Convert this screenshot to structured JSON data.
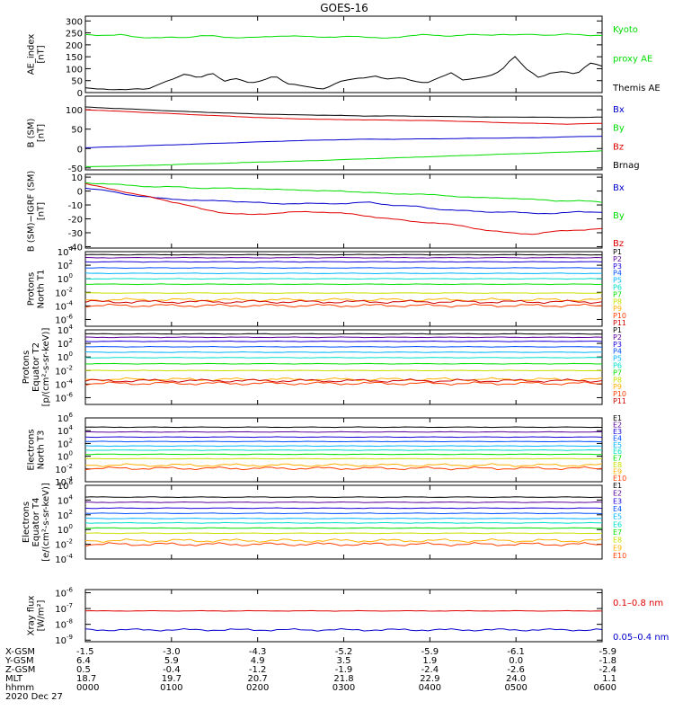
{
  "title": "GOES-16",
  "colors": {
    "black": "#000000",
    "red": "#e00000",
    "green": "#00dd00",
    "blue": "#0000cc",
    "rainbow": [
      "#000000",
      "#5a009c",
      "#1a00d8",
      "#0050ff",
      "#00b4ff",
      "#00e0c8",
      "#00e000",
      "#c8e000",
      "#ffb000",
      "#ff4000",
      "#d00000"
    ]
  },
  "chart_data": [
    {
      "id": "ae",
      "type": "line",
      "ylabel": [
        "AE_index",
        "[nT]"
      ],
      "ylim": [
        0,
        320
      ],
      "yticks": [
        "300",
        "250",
        "200",
        "150",
        "100",
        "50",
        "0"
      ],
      "series": [
        {
          "name": "Kyoto proxy AE",
          "color": "#00dd00",
          "values": [
            243,
            238,
            240,
            245,
            232,
            228,
            230,
            234,
            230,
            236,
            239,
            233,
            230,
            230,
            232,
            236,
            238,
            236,
            233,
            232,
            234,
            236,
            232,
            230,
            230,
            232,
            238,
            244,
            240,
            236,
            240,
            244,
            241,
            244,
            240,
            244,
            243,
            240,
            244,
            243,
            240,
            240
          ]
        },
        {
          "name": "Themis AE",
          "color": "#000000",
          "values": [
            18,
            16,
            14,
            12,
            14,
            15,
            40,
            58,
            78,
            60,
            85,
            48,
            58,
            40,
            50,
            72,
            36,
            30,
            22,
            15,
            42,
            55,
            62,
            70,
            55,
            62,
            50,
            40,
            60,
            82,
            52,
            62,
            68,
            90,
            155,
            100,
            62,
            82,
            88,
            78,
            125,
            110
          ]
        }
      ],
      "legend": [
        {
          "text": "Kyoto",
          "color": "#00dd00"
        },
        {
          "text": "proxy AE",
          "color": "#00dd00"
        },
        {
          "text": "Themis AE",
          "color": "#000000"
        }
      ]
    },
    {
      "id": "bsm",
      "type": "line",
      "ylabel": [
        "B (SM)",
        "[nT]"
      ],
      "ylim": [
        -55,
        135
      ],
      "yticks": [
        "100",
        "50",
        "0",
        "-50"
      ],
      "series": [
        {
          "name": "Brnag",
          "color": "#000000",
          "values": [
            107,
            103,
            99,
            95,
            92,
            89,
            87,
            86,
            84,
            84,
            83,
            82,
            81,
            81,
            80,
            81
          ]
        },
        {
          "name": "Bz",
          "color": "#e00000",
          "values": [
            100,
            96,
            92,
            88,
            84,
            80,
            77,
            75,
            74,
            73,
            72,
            70,
            67,
            65,
            63,
            65
          ]
        },
        {
          "name": "Bx",
          "color": "#0000cc",
          "values": [
            2,
            5,
            8,
            11,
            14,
            17,
            20,
            22,
            24,
            24,
            25,
            26,
            27,
            28,
            30,
            32
          ]
        },
        {
          "name": "By",
          "color": "#00dd00",
          "values": [
            -47,
            -45,
            -43,
            -40,
            -38,
            -35,
            -33,
            -30,
            -27,
            -24,
            -21,
            -18,
            -15,
            -12,
            -9,
            -6
          ]
        }
      ],
      "legend": [
        {
          "text": "Bx",
          "color": "#0000cc"
        },
        {
          "text": "By",
          "color": "#00dd00"
        },
        {
          "text": "Bz",
          "color": "#e00000"
        },
        {
          "text": "Brnag",
          "color": "#000000"
        }
      ]
    },
    {
      "id": "bigrf",
      "type": "line",
      "ylabel": [
        "B (SM)−IGRF (SM)",
        "[nT]"
      ],
      "ylim": [
        -41,
        12
      ],
      "yticks": [
        "10",
        "0",
        "-10",
        "-20",
        "-30",
        "-40"
      ],
      "series": [
        {
          "name": "By",
          "color": "#00dd00",
          "values": [
            6,
            5,
            4,
            3,
            3,
            2,
            2,
            2,
            1,
            1,
            0,
            0,
            -1,
            -2,
            -2,
            -3,
            -4,
            -5,
            -5,
            -6,
            -7,
            -7,
            -8
          ]
        },
        {
          "name": "Bx",
          "color": "#0000cc",
          "values": [
            2,
            0,
            -3,
            -5,
            -6,
            -7,
            -7,
            -8,
            -9,
            -9,
            -9,
            -9,
            -8,
            -10,
            -11,
            -13,
            -14,
            -15,
            -15,
            -16,
            -16,
            -15,
            -15
          ]
        },
        {
          "name": "Bz",
          "color": "#e00000",
          "values": [
            5,
            2,
            -2,
            -5,
            -9,
            -13,
            -16,
            -17,
            -16,
            -15,
            -15,
            -16,
            -18,
            -20,
            -22,
            -23,
            -25,
            -28,
            -30,
            -31,
            -29,
            -28,
            -27
          ]
        }
      ],
      "legend": [
        {
          "text": "Bx",
          "color": "#0000cc"
        },
        {
          "text": "By",
          "color": "#00dd00"
        },
        {
          "text": "Bz",
          "color": "#e00000"
        }
      ]
    },
    {
      "id": "protons_north",
      "type": "line",
      "yscale": "log",
      "ylabel": [
        "Protons",
        "North T1"
      ],
      "ylim_exp": [
        -7,
        4
      ],
      "yticks": [
        {
          "exp": 4
        },
        {
          "exp": 2
        },
        {
          "exp": 0
        },
        {
          "exp": -2
        },
        {
          "exp": -4
        },
        {
          "exp": -6
        }
      ],
      "series_log10_levels": [
        3.55,
        3.1,
        2.5,
        1.6,
        0.8,
        0.0,
        -0.8,
        -2.1,
        -3.1,
        -3.95,
        -3.4
      ],
      "legend": [
        "P1",
        "P2",
        "P3",
        "P4",
        "P5",
        "P6",
        "P7",
        "P8",
        "P9",
        "P10",
        "P11"
      ]
    },
    {
      "id": "protons_equator",
      "type": "line",
      "yscale": "log",
      "ylabel": [
        "Protons",
        "Equator T2",
        "[p/(cm²-s-sr-keV)]"
      ],
      "ylim_exp": [
        -7,
        4
      ],
      "yticks": [
        {
          "exp": 4
        },
        {
          "exp": 2
        },
        {
          "exp": 0
        },
        {
          "exp": -2
        },
        {
          "exp": -4
        },
        {
          "exp": -6
        }
      ],
      "series_log10_levels": [
        3.4,
        2.9,
        2.3,
        1.5,
        0.7,
        -0.1,
        -1.0,
        -2.0,
        -3.3,
        -3.9,
        -3.5
      ],
      "legend": [
        "P1",
        "P2",
        "P3",
        "P4",
        "P5",
        "P6",
        "P7",
        "P8",
        "P9",
        "P10",
        "P11"
      ]
    },
    {
      "id": "electrons_north",
      "type": "line",
      "yscale": "log",
      "ylabel": [
        "Electrons",
        "North T3"
      ],
      "ylim_exp": [
        -4,
        6
      ],
      "yticks": [
        {
          "exp": 6
        },
        {
          "exp": 4
        },
        {
          "exp": 2
        },
        {
          "exp": 0
        },
        {
          "exp": -2
        },
        {
          "exp": -4
        }
      ],
      "series_log10_levels": [
        4.55,
        3.8,
        3.0,
        2.3,
        1.6,
        0.95,
        0.3,
        -0.4,
        -1.4,
        -1.9
      ],
      "legend": [
        "E1",
        "E2",
        "E3",
        "E4",
        "E5",
        "E6",
        "E7",
        "E8",
        "E9",
        "E10"
      ]
    },
    {
      "id": "electrons_equator",
      "type": "line",
      "yscale": "log",
      "ylabel": [
        "Electrons",
        "Equator T4",
        "[e/(cm²-s-sr-keV)]"
      ],
      "ylim_exp": [
        -4,
        6
      ],
      "yticks": [
        {
          "exp": 6
        },
        {
          "exp": 4
        },
        {
          "exp": 2
        },
        {
          "exp": 0
        },
        {
          "exp": -2
        },
        {
          "exp": -4
        }
      ],
      "series_log10_levels": [
        4.4,
        3.7,
        2.9,
        2.2,
        1.5,
        0.9,
        0.2,
        -0.5,
        -1.5,
        -2.0
      ],
      "legend": [
        "E1",
        "E2",
        "E3",
        "E4",
        "E5",
        "E6",
        "E7",
        "E8",
        "E9",
        "E10"
      ]
    },
    {
      "id": "xray",
      "type": "line",
      "yscale": "log",
      "ylabel": [
        "Xray flux",
        "[W/m²]"
      ],
      "ylim_exp": [
        -9.1,
        -5.8
      ],
      "yticks": [
        {
          "exp": -6
        },
        {
          "exp": -7
        },
        {
          "exp": -8
        },
        {
          "exp": -9
        }
      ],
      "series": [
        {
          "name": "0.1–0.8 nm",
          "color": "#e00000",
          "log10_level": -7.15
        },
        {
          "name": "0.05–0.4 nm",
          "color": "#0000cc",
          "log10_level": -8.35
        }
      ],
      "legend": [
        {
          "text": "0.1–0.8 nm",
          "color": "#e00000"
        },
        {
          "text": "0.05–0.4 nm",
          "color": "#0000cc"
        }
      ]
    }
  ],
  "x_axis": {
    "row_labels": [
      "X-GSM",
      "Y-GSM",
      "Z-GSM",
      "MLT",
      "hhmm"
    ],
    "date": "2020 Dec 27",
    "columns": [
      [
        "-1.5",
        "6.4",
        "0.5",
        "18.7",
        "0000"
      ],
      [
        "-3.0",
        "5.9",
        "-0.4",
        "19.7",
        "0100"
      ],
      [
        "-4.3",
        "4.9",
        "-1.2",
        "20.7",
        "0200"
      ],
      [
        "-5.2",
        "3.5",
        "-1.9",
        "21.8",
        "0300"
      ],
      [
        "-5.9",
        "1.9",
        "-2.4",
        "22.9",
        "0400"
      ],
      [
        "-6.1",
        "0.0",
        "-2.6",
        "24.0",
        "0500"
      ],
      [
        "-5.9",
        "-1.8",
        "-2.4",
        "1.1",
        "0600"
      ]
    ]
  }
}
